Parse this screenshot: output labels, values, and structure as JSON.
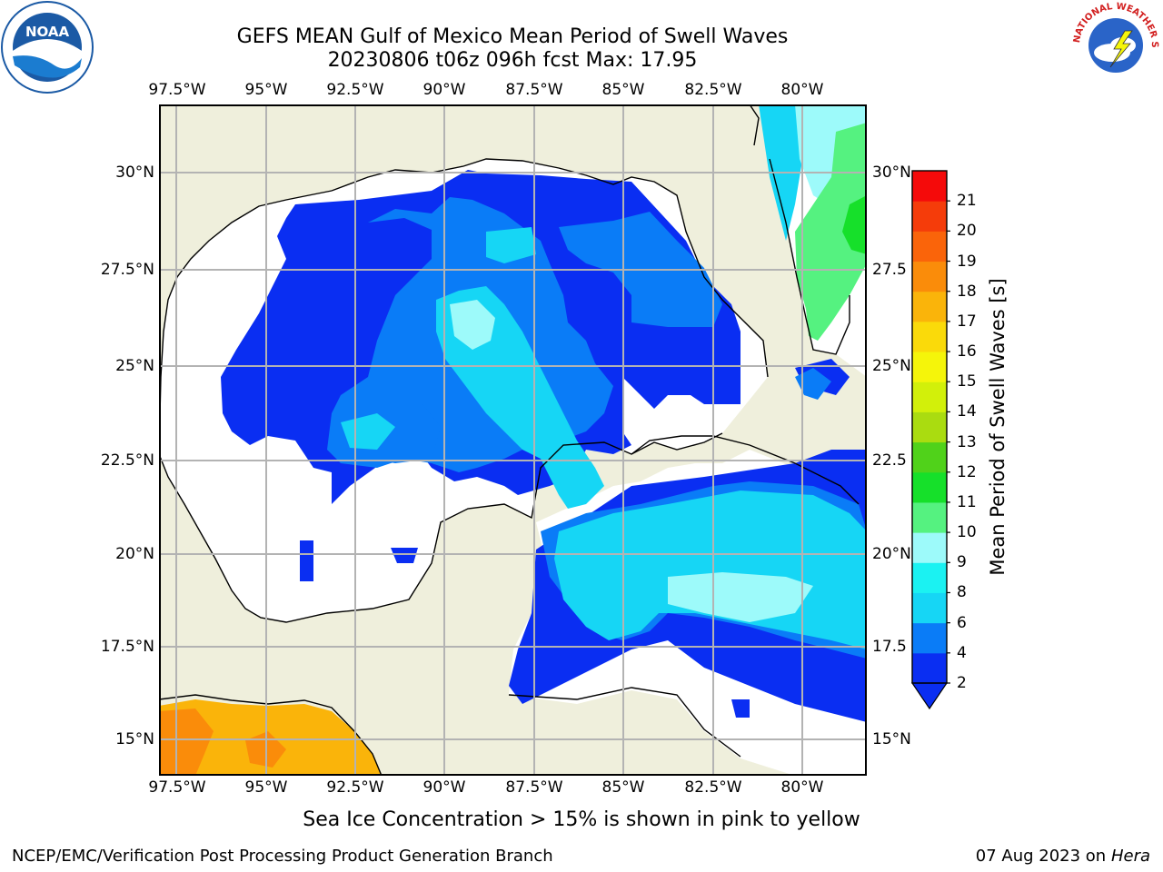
{
  "title": {
    "line1": "GEFS MEAN Gulf of Mexico Mean Period of Swell Waves",
    "line2": "20230806 t06z 096h fcst   Max: 17.95"
  },
  "map": {
    "lon_labels": [
      "97.5°W",
      "95°W",
      "92.5°W",
      "90°W",
      "87.5°W",
      "85°W",
      "82.5°W",
      "80°W"
    ],
    "lat_labels": [
      "30°N",
      "27.5°N",
      "25°N",
      "22.5°N",
      "20°N",
      "17.5°N",
      "15°N"
    ],
    "lat_labels_right": [
      "30°N",
      "27.5",
      "25°N",
      "22.5",
      "20°N",
      "17.5",
      "15°N"
    ],
    "colors": {
      "land": "#efefdc",
      "ocean_nodata": "#ffffff",
      "grid": "#b3b3b3",
      "coast": "#000000"
    }
  },
  "colorbar": {
    "title": "Mean Period of Swell Waves [s]",
    "tick_labels": [
      "2",
      "4",
      "6",
      "8",
      "9",
      "10",
      "11",
      "12",
      "13",
      "14",
      "15",
      "16",
      "17",
      "18",
      "19",
      "20",
      "21"
    ],
    "colors": [
      "#0a2ef2",
      "#0a7cf7",
      "#16d6f5",
      "#1bf2f2",
      "#9dfafa",
      "#55f280",
      "#16e02a",
      "#50d21a",
      "#aadc10",
      "#d2f00a",
      "#f5f50a",
      "#fada0a",
      "#fab40a",
      "#fa8c0a",
      "#fa640a",
      "#f53c0a",
      "#f50a0a"
    ]
  },
  "footnote": "Sea Ice Concentration > 15% is shown in pink to yellow",
  "credit": "NCEP/EMC/Verification Post Processing Product Generation Branch",
  "date": {
    "text": "07 Aug 2023 on",
    "host": "Hera"
  },
  "logos": {
    "noaa": "NOAA",
    "nws": "NATIONAL WEATHER SERVICE"
  }
}
